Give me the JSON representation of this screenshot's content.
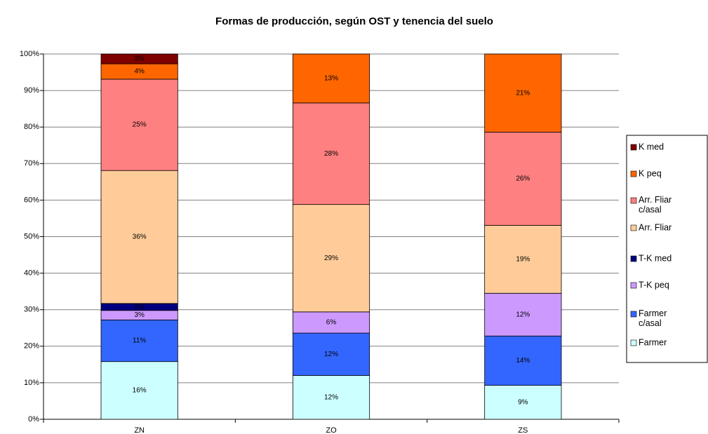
{
  "chart_data": {
    "type": "stacked_bar",
    "title": "Formas de producción, según OST y tenencia del suelo",
    "categories": [
      "ZN",
      "ZO",
      "ZS"
    ],
    "series": [
      {
        "name": "Farmer",
        "color": "#ccffff",
        "values": [
          15.8,
          12.0,
          9.3
        ],
        "value_labels": [
          "16%",
          "12%",
          "9%"
        ]
      },
      {
        "name": "Farmer c/asal",
        "color": "#3366ff",
        "values": [
          11.4,
          11.6,
          13.5
        ],
        "value_labels": [
          "11%",
          "12%",
          "14%"
        ]
      },
      {
        "name": "T-K peq",
        "color": "#cc99ff",
        "values": [
          2.6,
          5.8,
          11.7
        ],
        "value_labels": [
          "3%",
          "6%",
          "12%"
        ]
      },
      {
        "name": "T-K med",
        "color": "#000080",
        "values": [
          1.9,
          0,
          0
        ],
        "value_labels": [
          "2%",
          null,
          null
        ]
      },
      {
        "name": "Arr. Fliar",
        "color": "#ffcc99",
        "values": [
          36.4,
          29.4,
          18.6
        ],
        "value_labels": [
          "36%",
          "29%",
          "19%"
        ]
      },
      {
        "name": "Arr. Fliar c/asal",
        "color": "#ff8080",
        "values": [
          25.0,
          27.8,
          25.5
        ],
        "value_labels": [
          "25%",
          "28%",
          "26%"
        ]
      },
      {
        "name": "K peq",
        "color": "#ff6600",
        "values": [
          4.2,
          13.4,
          21.4
        ],
        "value_labels": [
          "4%",
          "13%",
          "21%"
        ]
      },
      {
        "name": "K med",
        "color": "#800000",
        "values": [
          2.7,
          0,
          0
        ],
        "value_labels": [
          "3%",
          null,
          null
        ]
      }
    ],
    "ylim": [
      0,
      100
    ],
    "yticks": [
      {
        "value": 0,
        "label": "0%"
      },
      {
        "value": 10,
        "label": "10%"
      },
      {
        "value": 20,
        "label": "20%"
      },
      {
        "value": 30,
        "label": "30%"
      },
      {
        "value": 40,
        "label": "40%"
      },
      {
        "value": 50,
        "label": "50%"
      },
      {
        "value": 60,
        "label": "60%"
      },
      {
        "value": 70,
        "label": "70%"
      },
      {
        "value": 80,
        "label": "80%"
      },
      {
        "value": 90,
        "label": "90%"
      },
      {
        "value": 100,
        "label": "100%"
      }
    ],
    "grid": true,
    "legend": "right"
  }
}
